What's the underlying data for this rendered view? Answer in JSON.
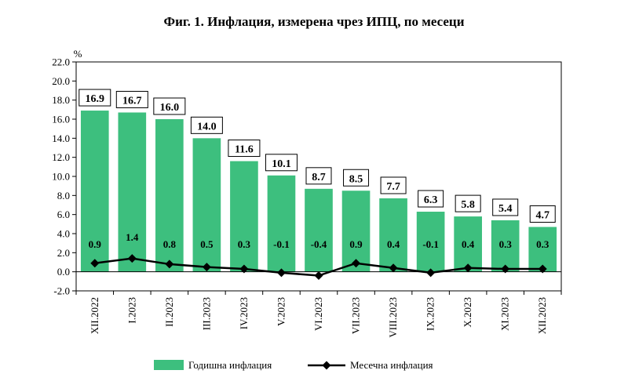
{
  "chart_data": {
    "type": "bar",
    "title": "Фиг. 1. Инфлация, измерена чрез ИПЦ, по месеци",
    "y_unit": "%",
    "ylim": [
      -2.0,
      22.0
    ],
    "y_ticks": [
      "-2.0",
      "0.0",
      "2.0",
      "4.0",
      "6.0",
      "8.0",
      "10.0",
      "12.0",
      "14.0",
      "16.0",
      "18.0",
      "20.0",
      "22.0"
    ],
    "grid": false,
    "legend_position": "bottom",
    "categories": [
      "XII.2022",
      "I.2023",
      "II.2023",
      "III.2023",
      "IV.2023",
      "V.2023",
      "VI.2023",
      "VII.2023",
      "VIII.2023",
      "IX.2023",
      "X.2023",
      "XI.2023",
      "XII.2023"
    ],
    "series": [
      {
        "name": "Годишна инфлация",
        "type": "bar",
        "color": "#3dbf7e",
        "values": [
          16.9,
          16.7,
          16.0,
          14.0,
          11.6,
          10.1,
          8.7,
          8.5,
          7.7,
          6.3,
          5.8,
          5.4,
          4.7
        ],
        "labels": [
          "16.9",
          "16.7",
          "16.0",
          "14.0",
          "11.6",
          "10.1",
          "8.7",
          "8.5",
          "7.7",
          "6.3",
          "5.8",
          "5.4",
          "4.7"
        ]
      },
      {
        "name": "Месечна инфлация",
        "type": "line",
        "color": "#000000",
        "values": [
          0.9,
          1.4,
          0.8,
          0.5,
          0.3,
          -0.1,
          -0.4,
          0.9,
          0.4,
          -0.1,
          0.4,
          0.3,
          0.3
        ],
        "labels": [
          "0.9",
          "1.4",
          "0.8",
          "0.5",
          "0.3",
          "-0.1",
          "-0.4",
          "0.9",
          "0.4",
          "-0.1",
          "0.4",
          "0.3",
          "0.3"
        ]
      }
    ]
  }
}
